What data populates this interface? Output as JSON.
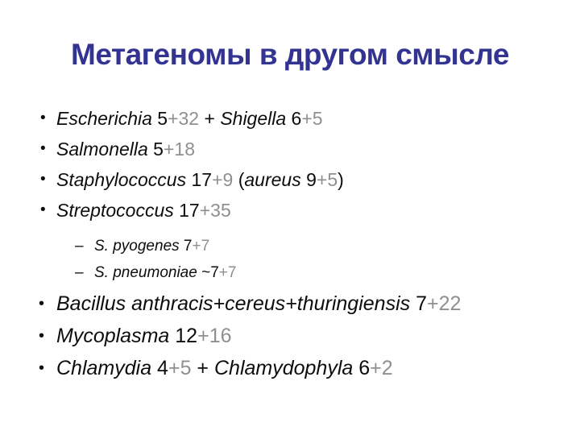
{
  "title": "Метагеномы в другом смысле",
  "colors": {
    "background": "#ffffff",
    "text": "#0d0d0d",
    "gray": "#8f8f8f",
    "title-color": "#333392"
  },
  "lists": [
    {
      "id": "top",
      "bullet": "•",
      "items": [
        {
          "segments": [
            {
              "t": "Escherichia",
              "s": "i"
            },
            {
              "t": " 5",
              "s": "n"
            },
            {
              "t": "+32",
              "s": "g"
            },
            {
              "t": " + ",
              "s": "n"
            },
            {
              "t": "Shigella",
              "s": "i"
            },
            {
              "t": " 6",
              "s": "n"
            },
            {
              "t": "+5",
              "s": "g"
            }
          ]
        },
        {
          "segments": [
            {
              "t": "Salmonella",
              "s": "i"
            },
            {
              "t": " 5",
              "s": "n"
            },
            {
              "t": "+18",
              "s": "g"
            }
          ]
        },
        {
          "segments": [
            {
              "t": "Staphylococcus",
              "s": "i"
            },
            {
              "t": " 17",
              "s": "n"
            },
            {
              "t": "+9",
              "s": "g"
            },
            {
              "t": " (",
              "s": "n"
            },
            {
              "t": "aureus",
              "s": "i"
            },
            {
              "t": " 9",
              "s": "n"
            },
            {
              "t": "+5",
              "s": "g"
            },
            {
              "t": ")",
              "s": "n"
            }
          ]
        },
        {
          "segments": [
            {
              "t": "Streptococcus",
              "s": "i"
            },
            {
              "t": " 17",
              "s": "n"
            },
            {
              "t": "+35",
              "s": "g"
            }
          ]
        }
      ]
    },
    {
      "id": "sub",
      "bullet": "–",
      "items": [
        {
          "segments": [
            {
              "t": "S. pyogenes",
              "s": "i"
            },
            {
              "t": " 7",
              "s": "n"
            },
            {
              "t": "+7",
              "s": "g"
            }
          ]
        },
        {
          "segments": [
            {
              "t": "S. pneumoniae",
              "s": "i"
            },
            {
              "t": " ~7",
              "s": "n"
            },
            {
              "t": "+7",
              "s": "g"
            }
          ]
        }
      ]
    },
    {
      "id": "bottom",
      "bullet": "•",
      "items": [
        {
          "segments": [
            {
              "t": "Bacillus anthracis+cereus+thuringiensis",
              "s": "i"
            },
            {
              "t": " 7",
              "s": "n"
            },
            {
              "t": "+22",
              "s": "g"
            }
          ]
        },
        {
          "segments": [
            {
              "t": "Mycoplasma",
              "s": "i"
            },
            {
              "t": " 12",
              "s": "n"
            },
            {
              "t": "+16",
              "s": "g"
            }
          ]
        },
        {
          "segments": [
            {
              "t": "Chlamydia",
              "s": "i"
            },
            {
              "t": " 4",
              "s": "n"
            },
            {
              "t": "+5",
              "s": "g"
            },
            {
              "t": " + ",
              "s": "n"
            },
            {
              "t": "Chlamydophyla",
              "s": "i"
            },
            {
              "t": " 6",
              "s": "n"
            },
            {
              "t": "+2",
              "s": "g"
            }
          ]
        }
      ]
    }
  ]
}
